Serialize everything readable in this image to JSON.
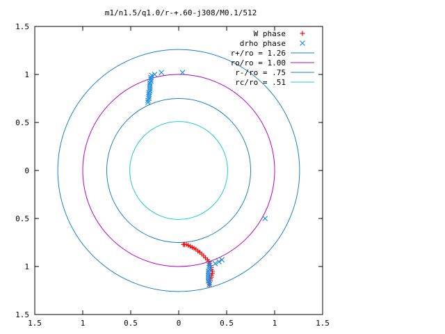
{
  "chart_data": {
    "type": "scatter",
    "title": "m1/n1.5/q1.0/r-+.60-j308/M0.1/512",
    "xlabel": "",
    "ylabel": "",
    "xlim": [
      -1.5,
      1.5
    ],
    "ylim": [
      -1.5,
      1.5
    ],
    "x_ticks": [
      -1.5,
      -1,
      -0.5,
      0,
      0.5,
      1,
      1.5
    ],
    "y_ticks": [
      -1.5,
      -1,
      -0.5,
      0,
      0.5,
      1,
      1.5
    ],
    "x_tick_labels": [
      "1.5",
      "1",
      "0.5",
      "0",
      "0.5",
      "1",
      "1.5"
    ],
    "y_tick_labels": [
      "1.5",
      "1",
      "0.5",
      "0",
      "0.5",
      "1",
      "1.5"
    ],
    "grid": false,
    "legend_position": "top-right",
    "series": [
      {
        "name": "W phase",
        "marker": "plus",
        "color": "#ff0000",
        "points": [
          [
            0.05,
            -0.77
          ],
          [
            0.06,
            -0.77
          ],
          [
            0.08,
            -0.77
          ],
          [
            0.1,
            -0.78
          ],
          [
            0.12,
            -0.79
          ],
          [
            0.14,
            -0.8
          ],
          [
            0.16,
            -0.81
          ],
          [
            0.18,
            -0.82
          ],
          [
            0.2,
            -0.84
          ],
          [
            0.22,
            -0.85
          ],
          [
            0.24,
            -0.87
          ],
          [
            0.26,
            -0.89
          ],
          [
            0.28,
            -0.91
          ],
          [
            0.3,
            -0.93
          ],
          [
            0.31,
            -0.95
          ],
          [
            0.32,
            -0.97
          ],
          [
            0.33,
            -0.99
          ],
          [
            0.34,
            -1.01
          ],
          [
            0.34,
            -1.03
          ],
          [
            0.35,
            -1.05
          ],
          [
            0.35,
            -1.07
          ],
          [
            0.34,
            -1.09
          ],
          [
            0.34,
            -1.11
          ],
          [
            0.33,
            -1.13
          ],
          [
            0.33,
            -1.15
          ],
          [
            0.32,
            -1.17
          ],
          [
            0.32,
            -1.19
          ]
        ]
      },
      {
        "name": "drho phase",
        "marker": "x",
        "color": "#1f8ce6",
        "points": [
          [
            -0.28,
            0.99
          ],
          [
            -0.29,
            0.97
          ],
          [
            -0.29,
            0.95
          ],
          [
            -0.29,
            0.93
          ],
          [
            -0.3,
            0.91
          ],
          [
            -0.3,
            0.89
          ],
          [
            -0.3,
            0.87
          ],
          [
            -0.3,
            0.85
          ],
          [
            -0.3,
            0.83
          ],
          [
            -0.31,
            0.81
          ],
          [
            -0.31,
            0.79
          ],
          [
            -0.31,
            0.77
          ],
          [
            -0.31,
            0.75
          ],
          [
            -0.32,
            0.73
          ],
          [
            -0.32,
            0.71
          ],
          [
            -0.25,
            1.0
          ],
          [
            -0.18,
            1.02
          ],
          [
            0.04,
            1.02
          ],
          [
            0.32,
            -0.97
          ],
          [
            0.32,
            -0.99
          ],
          [
            0.32,
            -1.01
          ],
          [
            0.32,
            -1.03
          ],
          [
            0.31,
            -1.05
          ],
          [
            0.31,
            -1.07
          ],
          [
            0.31,
            -1.09
          ],
          [
            0.31,
            -1.11
          ],
          [
            0.31,
            -1.13
          ],
          [
            0.31,
            -1.15
          ],
          [
            0.32,
            -1.17
          ],
          [
            0.32,
            -1.19
          ],
          [
            0.38,
            -0.97
          ],
          [
            0.42,
            -0.95
          ],
          [
            0.45,
            -0.93
          ],
          [
            0.9,
            -0.5
          ]
        ]
      },
      {
        "name": "r+/ro = 1.26",
        "type": "circle",
        "radius": 1.26,
        "color": "#1a80c4"
      },
      {
        "name": "ro/ro = 1.00",
        "type": "circle",
        "radius": 1.0,
        "color": "#b000c8"
      },
      {
        "name": "r-/ro = .75",
        "type": "circle",
        "radius": 0.75,
        "color": "#1a80c4"
      },
      {
        "name": "rc/ro = .51",
        "type": "circle",
        "radius": 0.51,
        "color": "#20c8d8"
      }
    ]
  }
}
